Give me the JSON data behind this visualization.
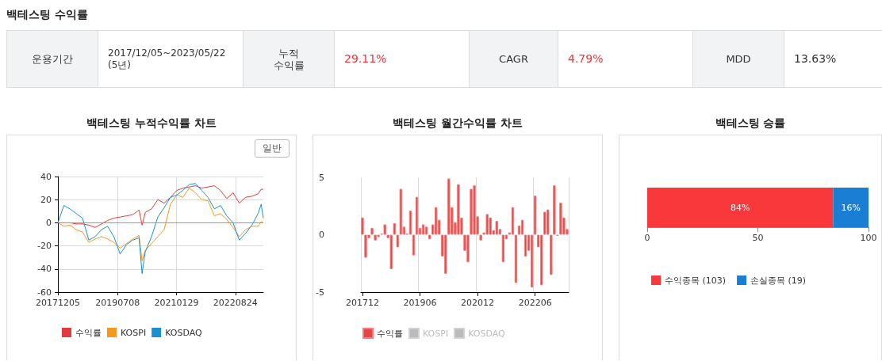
{
  "chart_data": [
    {
      "type": "other",
      "title": "백테스팅 수익률",
      "annotations": [
        "운용기간",
        "2017/12/05~2023/05/22\n(5년)",
        "누적\n수익률",
        "29.11%",
        "CAGR",
        "4.79%",
        "MDD",
        "13.63%"
      ]
    },
    {
      "type": "line",
      "title": "백테스팅 누적수익률 차트",
      "annotations": [
        "일반"
      ],
      "x": [
        "2017-12-05",
        "2018-02",
        "2018-04",
        "2018-06",
        "2018-08",
        "2018-10",
        "2018-12",
        "2019-02",
        "2019-04",
        "2019-06",
        "2019-08",
        "2019-10",
        "2019-12",
        "2020-02",
        "2020-03",
        "2020-04",
        "2020-06",
        "2020-08",
        "2020-10",
        "2020-12",
        "2021-02",
        "2021-04",
        "2021-06",
        "2021-08",
        "2021-10",
        "2021-12",
        "2022-02",
        "2022-04",
        "2022-06",
        "2022-08",
        "2022-10",
        "2022-12",
        "2023-02",
        "2023-04",
        "2023-05",
        "2023-05-22"
      ],
      "series": [
        {
          "name": "수익률",
          "color": "#e23b3b",
          "values": [
            0,
            0,
            0,
            -1,
            -1,
            -2,
            -4,
            -1,
            2,
            4,
            5,
            6,
            7,
            11,
            -2,
            9,
            12,
            20,
            17,
            22,
            28,
            30,
            31,
            32,
            30,
            31,
            32,
            28,
            21,
            26,
            17,
            22,
            23,
            25,
            29,
            29
          ]
        },
        {
          "name": "KOSPI",
          "color": "#f7971e",
          "values": [
            0,
            -3,
            -2,
            -6,
            -8,
            -17,
            -14,
            -12,
            -14,
            -17,
            -22,
            -18,
            -14,
            -11,
            -33,
            -24,
            -18,
            -12,
            -6,
            16,
            24,
            22,
            30,
            26,
            20,
            19,
            6,
            8,
            3,
            -4,
            -12,
            -6,
            -3,
            -3,
            1,
            0
          ]
        },
        {
          "name": "KOSDAQ",
          "color": "#1a90d0",
          "values": [
            0,
            15,
            12,
            8,
            4,
            -15,
            -12,
            -6,
            -3,
            -12,
            -27,
            -19,
            -15,
            -13,
            -44,
            -25,
            -12,
            5,
            13,
            22,
            24,
            28,
            33,
            34,
            28,
            22,
            12,
            15,
            6,
            0,
            -15,
            -9,
            -2,
            8,
            16,
            4
          ]
        }
      ],
      "xlim": [
        "2017-12-05",
        "2023-05-22"
      ],
      "xticks": [
        {
          "value": "2017-12-05",
          "label": "20171205"
        },
        {
          "value": "2019-07-08",
          "label": "20190708"
        },
        {
          "value": "2021-01-29",
          "label": "20210129"
        },
        {
          "value": "2022-08-24",
          "label": "20220824"
        }
      ],
      "ylim": [
        -60,
        40
      ],
      "yticks": [
        -60,
        -40,
        -20,
        0,
        20,
        40
      ],
      "ref_lines": [
        {
          "axis": "y",
          "value": 0,
          "color": "#999999"
        }
      ],
      "grid": true,
      "legend": "bottom",
      "marker": "none",
      "line_style": "solid"
    },
    {
      "type": "bar",
      "title": "백테스팅 월간수익률 차트",
      "categories": [
        "201712",
        null,
        null,
        null,
        null,
        null,
        null,
        null,
        null,
        null,
        null,
        null,
        null,
        null,
        null,
        null,
        null,
        null,
        "201906",
        null,
        null,
        null,
        null,
        null,
        null,
        null,
        null,
        null,
        null,
        null,
        null,
        null,
        null,
        null,
        null,
        null,
        "202012",
        null,
        null,
        null,
        null,
        null,
        null,
        null,
        null,
        null,
        null,
        null,
        null,
        null,
        null,
        null,
        null,
        null,
        "202206",
        null,
        null,
        null,
        null,
        null,
        null,
        null,
        null,
        null,
        null
      ],
      "series": [
        {
          "name": "수익률",
          "color": "#e84545",
          "values": [
            1.5,
            -2.0,
            -0.3,
            0.6,
            -0.5,
            -0.2,
            0.1,
            0.9,
            -0.3,
            -3.0,
            1.0,
            -1.1,
            4.0,
            0.7,
            0.1,
            2.1,
            -1.8,
            3.3,
            0.6,
            0.9,
            0.7,
            -0.4,
            0.9,
            2.4,
            1.3,
            -1.9,
            -3.4,
            4.9,
            2.4,
            1.1,
            4.4,
            1.5,
            -1.4,
            -2.4,
            4.0,
            4.3,
            1.6,
            -0.5,
            0.2,
            1.8,
            1.5,
            0.4,
            1.2,
            0.5,
            -2.4,
            -0.4,
            0.2,
            2.4,
            -4.2,
            0.8,
            1.3,
            -1.9,
            -1.4,
            -4.6,
            3.4,
            -1.1,
            -4.4,
            2.0,
            2.2,
            -3.5,
            4.3,
            -0.1,
            2.8,
            1.5,
            0.5
          ]
        },
        {
          "name": "KOSPI",
          "color": "#cccccc",
          "values": [
            null,
            null,
            null,
            null,
            null,
            null,
            null,
            null,
            null,
            null,
            null,
            null,
            null,
            null,
            null,
            null,
            null,
            null,
            null,
            null,
            null,
            null,
            null,
            null,
            null,
            null,
            null,
            null,
            null,
            null,
            null,
            null,
            null,
            null,
            null,
            null,
            null,
            null,
            null,
            null,
            null,
            null,
            null,
            null,
            null,
            null,
            null,
            null,
            null,
            null,
            null,
            null,
            null,
            null,
            null,
            null,
            null,
            null,
            null,
            null,
            null,
            null,
            null,
            null,
            null
          ]
        },
        {
          "name": "KOSDAQ",
          "color": "#cccccc",
          "values": [
            null,
            null,
            null,
            null,
            null,
            null,
            null,
            null,
            null,
            null,
            null,
            null,
            null,
            null,
            null,
            null,
            null,
            null,
            null,
            null,
            null,
            null,
            null,
            null,
            null,
            null,
            null,
            null,
            null,
            null,
            null,
            null,
            null,
            null,
            null,
            null,
            null,
            null,
            null,
            null,
            null,
            null,
            null,
            null,
            null,
            null,
            null,
            null,
            null,
            null,
            null,
            null,
            null,
            null,
            null,
            null,
            null,
            null,
            null,
            null,
            null,
            null,
            null,
            null,
            null
          ]
        }
      ],
      "ylim": [
        -5,
        5
      ],
      "yticks": [
        -5,
        0,
        5
      ],
      "grid": "x",
      "legend": "bottom"
    },
    {
      "type": "bar",
      "title": "백테스팅 승률",
      "orientation": "horizontal",
      "stacked": true,
      "categories": [
        null
      ],
      "series": [
        {
          "name": "수익종목 (103)",
          "color": "#f8383b",
          "values": [
            84
          ],
          "value_labels": [
            "84%"
          ]
        },
        {
          "name": "손실종목 (19)",
          "color": "#1a7fd4",
          "values": [
            16
          ],
          "value_labels": [
            "16%"
          ]
        }
      ],
      "xlim": [
        0,
        100
      ],
      "xticks": [
        0,
        50,
        100
      ],
      "grid": false,
      "legend": "bottom"
    }
  ]
}
